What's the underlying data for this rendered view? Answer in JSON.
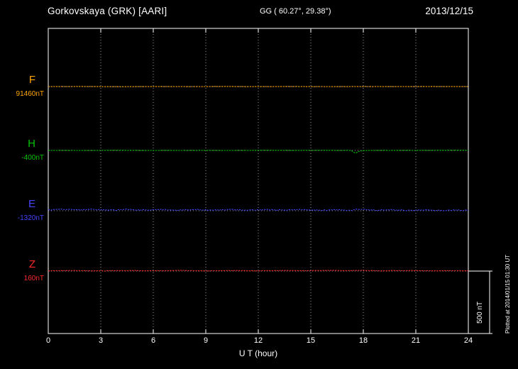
{
  "header": {
    "station": "Gorkovskaya (GRK)  [AARI]",
    "coords": "GG ( 60.27°,  29.38°)",
    "date": "2013/12/15"
  },
  "axis": {
    "xlabel": "U T (hour)"
  },
  "scale_bar": {
    "label": "500 nT"
  },
  "watermark": "Plotted at 2014/01/15 01:30 UT",
  "colors": {
    "background": "#000000",
    "axis": "#ffffff",
    "grid": "#9a9a9a",
    "baseline": "#c8c8c8",
    "F": "#ffa500",
    "H": "#00c400",
    "E": "#4444ff",
    "Z": "#ff2a2a"
  },
  "chart_data": {
    "type": "line",
    "title": "Gorkovskaya (GRK) [AARI] magnetogram, 2013/12/15",
    "xlabel": "U T (hour)",
    "xlim": [
      0,
      24
    ],
    "x_ticks": [
      0,
      3,
      6,
      9,
      12,
      15,
      18,
      21,
      24
    ],
    "grid": true,
    "legend_position": "left",
    "scale_nT_per_division": 500,
    "series": [
      {
        "component": "F",
        "baseline_label": "91460nT",
        "baseline_nT": 91460,
        "color_key": "F",
        "deviation_keypoints_hour_nT": [
          [
            0,
            0
          ],
          [
            2,
            1
          ],
          [
            4,
            -1
          ],
          [
            6,
            0.5
          ],
          [
            8,
            -0.5
          ],
          [
            10,
            1
          ],
          [
            12,
            0
          ],
          [
            14,
            0.5
          ],
          [
            16,
            -0.5
          ],
          [
            18,
            0.5
          ],
          [
            20,
            0
          ],
          [
            22,
            0.5
          ],
          [
            24,
            0
          ]
        ]
      },
      {
        "component": "H",
        "baseline_label": "-400nT",
        "baseline_nT": -400,
        "color_key": "H",
        "deviation_keypoints_hour_nT": [
          [
            0,
            1
          ],
          [
            2,
            0
          ],
          [
            4,
            1.5
          ],
          [
            6,
            0
          ],
          [
            8,
            1
          ],
          [
            10,
            0
          ],
          [
            12,
            1.5
          ],
          [
            14,
            0.5
          ],
          [
            16,
            1
          ],
          [
            17.3,
            0.5
          ],
          [
            17.55,
            -23
          ],
          [
            17.75,
            -6
          ],
          [
            18,
            -1
          ],
          [
            18.6,
            1
          ],
          [
            20,
            0.5
          ],
          [
            22,
            1
          ],
          [
            23.2,
            2
          ],
          [
            24,
            1.5
          ]
        ]
      },
      {
        "component": "E",
        "baseline_label": "-1320nT",
        "baseline_nT": -1320,
        "color_key": "E",
        "deviation_keypoints_hour_nT": [
          [
            0,
            6
          ],
          [
            0.8,
            13
          ],
          [
            1.5,
            7
          ],
          [
            2.5,
            11
          ],
          [
            3.5,
            5
          ],
          [
            4.5,
            10
          ],
          [
            5.5,
            6
          ],
          [
            6.5,
            10
          ],
          [
            7.5,
            5
          ],
          [
            8.5,
            9
          ],
          [
            9.5,
            6
          ],
          [
            10.5,
            10
          ],
          [
            11.5,
            6
          ],
          [
            12.5,
            9
          ],
          [
            13.5,
            5
          ],
          [
            14.5,
            8
          ],
          [
            15.5,
            4
          ],
          [
            16.5,
            7
          ],
          [
            17.3,
            3
          ],
          [
            17.8,
            13
          ],
          [
            18.4,
            5
          ],
          [
            19.5,
            8
          ],
          [
            20.5,
            3
          ],
          [
            21.5,
            6
          ],
          [
            22.5,
            2
          ],
          [
            23.3,
            5
          ],
          [
            24,
            4
          ]
        ]
      },
      {
        "component": "Z",
        "baseline_label": "160nT",
        "baseline_nT": 160,
        "color_key": "Z",
        "deviation_keypoints_hour_nT": [
          [
            0,
            2
          ],
          [
            1.5,
            4
          ],
          [
            3,
            1.5
          ],
          [
            4.5,
            4
          ],
          [
            6,
            2
          ],
          [
            7.5,
            4.5
          ],
          [
            9,
            2
          ],
          [
            10.5,
            4
          ],
          [
            12,
            2.5
          ],
          [
            13.5,
            5
          ],
          [
            15,
            3
          ],
          [
            16,
            6
          ],
          [
            17,
            3.5
          ],
          [
            18,
            5
          ],
          [
            19,
            2.5
          ],
          [
            20.5,
            4
          ],
          [
            22,
            2
          ],
          [
            23,
            3.5
          ],
          [
            24,
            3
          ]
        ]
      }
    ]
  }
}
